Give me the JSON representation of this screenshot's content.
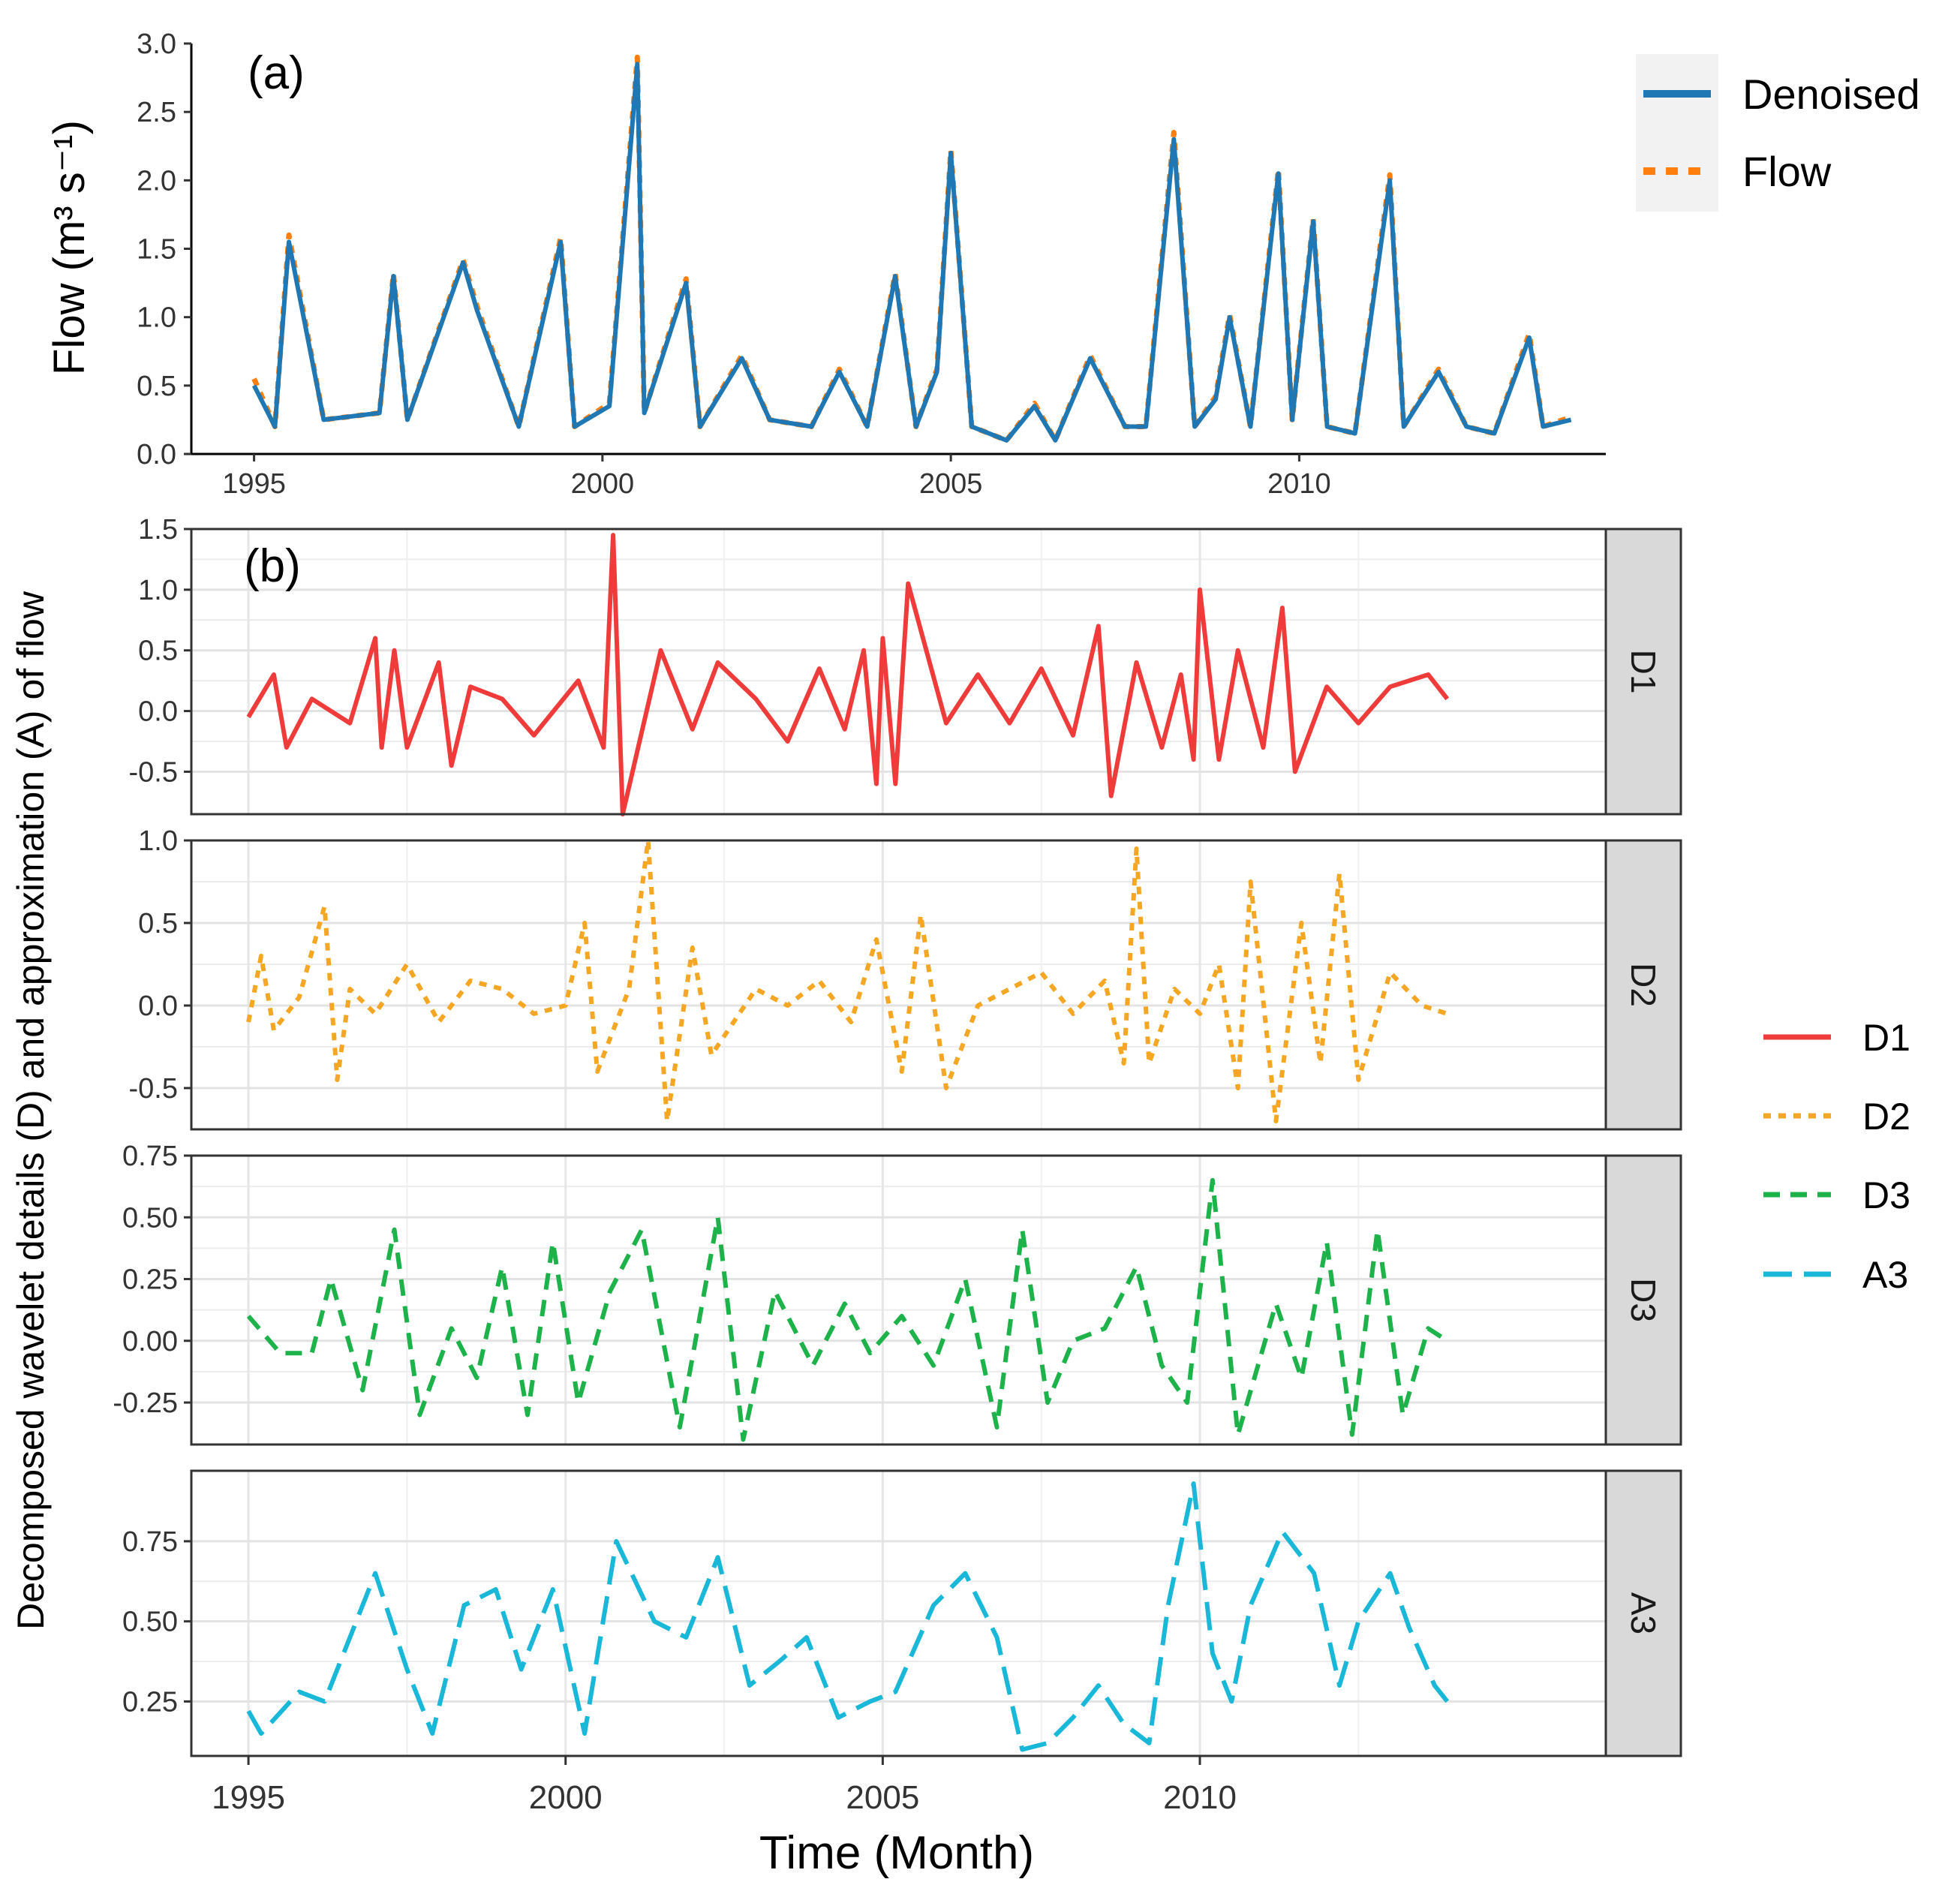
{
  "figure": {
    "panel_a_label": "(a)",
    "panel_b_label": "(b)",
    "xlabel": "Time (Month)",
    "ylabel_b": "Decomposed wavelet details (D) and approximation (A) of flow"
  },
  "legends": {
    "top": [
      {
        "label": "Denoised",
        "color": "#1f77b4",
        "dash": "solid"
      },
      {
        "label": "Flow",
        "color": "#ff7f0e",
        "dash": "dotted"
      }
    ],
    "bottom": [
      {
        "label": "D1",
        "color": "#f03b3b",
        "dash": "solid"
      },
      {
        "label": "D2",
        "color": "#f5a623",
        "dash": "dotted"
      },
      {
        "label": "D3",
        "color": "#1db34a",
        "dash": "dashed"
      },
      {
        "label": "A3",
        "color": "#1ab8d8",
        "dash": "longdash"
      }
    ]
  },
  "chart_data": [
    {
      "type": "line",
      "panel": "a",
      "title": "",
      "ylabel": "Flow (m³ s⁻¹)",
      "xlabel": "",
      "xlim": [
        1994.1,
        2014.4
      ],
      "ylim": [
        0,
        3.0
      ],
      "x_ticks": [
        1995,
        2000,
        2005,
        2010
      ],
      "y_ticks": [
        "0.0",
        "0.5",
        "1.0",
        "1.5",
        "2.0",
        "2.5",
        "3.0"
      ],
      "grid": false,
      "x": [
        1995.0,
        1995.3,
        1995.5,
        1996.0,
        1996.8,
        1997.0,
        1997.2,
        1998.0,
        1998.2,
        1998.8,
        1999.4,
        1999.6,
        2000.1,
        2000.5,
        2000.6,
        2001.2,
        2001.4,
        2002.0,
        2002.4,
        2003.0,
        2003.4,
        2003.8,
        2004.2,
        2004.5,
        2004.8,
        2005.0,
        2005.3,
        2005.8,
        2006.2,
        2006.5,
        2007.0,
        2007.5,
        2007.8,
        2008.2,
        2008.5,
        2008.8,
        2009.0,
        2009.3,
        2009.7,
        2009.9,
        2010.2,
        2010.4,
        2010.8,
        2011.3,
        2011.5,
        2012.0,
        2012.4,
        2012.8,
        2013.3,
        2013.5,
        2013.9
      ],
      "series": [
        {
          "name": "Denoised",
          "values": [
            0.5,
            0.2,
            1.55,
            0.25,
            0.3,
            1.3,
            0.25,
            1.4,
            1.05,
            0.2,
            1.55,
            0.2,
            0.35,
            2.85,
            0.3,
            1.25,
            0.2,
            0.7,
            0.25,
            0.2,
            0.6,
            0.2,
            1.3,
            0.2,
            0.6,
            2.2,
            0.2,
            0.1,
            0.35,
            0.1,
            0.7,
            0.2,
            0.2,
            2.3,
            0.2,
            0.4,
            1.0,
            0.2,
            2.05,
            0.25,
            1.7,
            0.2,
            0.15,
            2.0,
            0.2,
            0.6,
            0.2,
            0.15,
            0.85,
            0.2,
            0.25
          ]
        },
        {
          "name": "Flow",
          "values": [
            0.55,
            0.2,
            1.6,
            0.25,
            0.3,
            1.32,
            0.25,
            1.42,
            1.08,
            0.2,
            1.58,
            0.2,
            0.37,
            2.9,
            0.3,
            1.28,
            0.2,
            0.72,
            0.25,
            0.2,
            0.62,
            0.2,
            1.32,
            0.2,
            0.62,
            2.22,
            0.2,
            0.1,
            0.37,
            0.1,
            0.72,
            0.2,
            0.2,
            2.35,
            0.2,
            0.42,
            1.02,
            0.2,
            2.08,
            0.25,
            1.72,
            0.2,
            0.15,
            2.04,
            0.2,
            0.62,
            0.2,
            0.15,
            0.88,
            0.2,
            0.27
          ]
        }
      ]
    },
    {
      "type": "line",
      "panel": "D1",
      "title": "",
      "ylabel": "",
      "xlabel": "",
      "xlim": [
        1994.1,
        2016.4
      ],
      "ylim": [
        -0.85,
        1.5
      ],
      "x_ticks": [],
      "y_ticks": [
        "-0.5",
        "0.0",
        "0.5",
        "1.0",
        "1.5"
      ],
      "grid": true,
      "strip_label": "D1",
      "x": [
        1995.0,
        1995.4,
        1995.6,
        1996.0,
        1996.6,
        1997.0,
        1997.1,
        1997.3,
        1997.5,
        1998.0,
        1998.2,
        1998.5,
        1999.0,
        1999.5,
        2000.2,
        2000.6,
        2000.75,
        2000.9,
        2001.5,
        2002.0,
        2002.4,
        2003.0,
        2003.5,
        2004.0,
        2004.4,
        2004.7,
        2004.9,
        2005.0,
        2005.2,
        2005.4,
        2006.0,
        2006.5,
        2007.0,
        2007.5,
        2008.0,
        2008.4,
        2008.6,
        2009.0,
        2009.4,
        2009.7,
        2009.9,
        2010.0,
        2010.3,
        2010.6,
        2011.0,
        2011.3,
        2011.5,
        2012.0,
        2012.5,
        2013.0,
        2013.6,
        2013.9
      ],
      "series": [
        {
          "name": "D1",
          "values": [
            -0.05,
            0.3,
            -0.3,
            0.1,
            -0.1,
            0.6,
            -0.3,
            0.5,
            -0.3,
            0.4,
            -0.45,
            0.2,
            0.1,
            -0.2,
            0.25,
            -0.3,
            1.45,
            -0.85,
            0.5,
            -0.15,
            0.4,
            0.1,
            -0.25,
            0.35,
            -0.15,
            0.5,
            -0.6,
            0.6,
            -0.6,
            1.05,
            -0.1,
            0.3,
            -0.1,
            0.35,
            -0.2,
            0.7,
            -0.7,
            0.4,
            -0.3,
            0.3,
            -0.4,
            1.0,
            -0.4,
            0.5,
            -0.3,
            0.85,
            -0.5,
            0.2,
            -0.1,
            0.2,
            0.3,
            0.1
          ]
        }
      ]
    },
    {
      "type": "line",
      "panel": "D2",
      "title": "",
      "ylabel": "",
      "xlabel": "",
      "xlim": [
        1994.1,
        2016.4
      ],
      "ylim": [
        -0.75,
        1.0
      ],
      "x_ticks": [],
      "y_ticks": [
        "-0.5",
        "0.0",
        "0.5",
        "1.0"
      ],
      "grid": true,
      "strip_label": "D2",
      "x": [
        1995.0,
        1995.2,
        1995.4,
        1995.8,
        1996.2,
        1996.4,
        1996.6,
        1997.0,
        1997.5,
        1998.0,
        1998.5,
        1999.0,
        1999.5,
        2000.0,
        2000.3,
        2000.5,
        2001.0,
        2001.3,
        2001.6,
        2002.0,
        2002.3,
        2003.0,
        2003.5,
        2004.0,
        2004.5,
        2004.9,
        2005.3,
        2005.6,
        2006.0,
        2006.5,
        2007.0,
        2007.5,
        2008.0,
        2008.5,
        2008.8,
        2009.0,
        2009.2,
        2009.6,
        2010.0,
        2010.3,
        2010.6,
        2010.8,
        2011.2,
        2011.6,
        2011.9,
        2012.2,
        2012.5,
        2013.0,
        2013.5,
        2013.9
      ],
      "series": [
        {
          "name": "D2",
          "values": [
            -0.1,
            0.3,
            -0.15,
            0.05,
            0.6,
            -0.45,
            0.1,
            -0.05,
            0.25,
            -0.1,
            0.15,
            0.1,
            -0.05,
            0.0,
            0.5,
            -0.4,
            0.1,
            1.0,
            -0.7,
            0.35,
            -0.3,
            0.1,
            0.0,
            0.15,
            -0.1,
            0.4,
            -0.4,
            0.55,
            -0.5,
            0.0,
            0.1,
            0.2,
            -0.05,
            0.15,
            -0.35,
            0.95,
            -0.35,
            0.1,
            -0.05,
            0.25,
            -0.5,
            0.75,
            -0.7,
            0.5,
            -0.35,
            0.8,
            -0.45,
            0.2,
            0.0,
            -0.05
          ]
        }
      ]
    },
    {
      "type": "line",
      "panel": "D3",
      "title": "",
      "ylabel": "",
      "xlabel": "",
      "xlim": [
        1994.1,
        2016.4
      ],
      "ylim": [
        -0.42,
        0.75
      ],
      "x_ticks": [],
      "y_ticks": [
        "-0.25",
        "0.00",
        "0.25",
        "0.50",
        "0.75"
      ],
      "grid": true,
      "strip_label": "D3",
      "x": [
        1995.0,
        1995.5,
        1996.0,
        1996.3,
        1996.8,
        1997.3,
        1997.7,
        1998.2,
        1998.6,
        1999.0,
        1999.4,
        1999.8,
        2000.2,
        2000.7,
        2001.2,
        2001.8,
        2002.4,
        2002.8,
        2003.3,
        2003.9,
        2004.4,
        2004.8,
        2005.3,
        2005.8,
        2006.3,
        2006.8,
        2007.2,
        2007.6,
        2008.0,
        2008.5,
        2009.0,
        2009.4,
        2009.8,
        2010.2,
        2010.6,
        2011.2,
        2011.6,
        2012.0,
        2012.4,
        2012.8,
        2013.2,
        2013.6,
        2013.9
      ],
      "series": [
        {
          "name": "D3",
          "values": [
            0.1,
            -0.05,
            -0.05,
            0.25,
            -0.2,
            0.45,
            -0.3,
            0.05,
            -0.15,
            0.3,
            -0.3,
            0.4,
            -0.25,
            0.2,
            0.45,
            -0.35,
            0.5,
            -0.4,
            0.2,
            -0.1,
            0.15,
            -0.05,
            0.1,
            -0.1,
            0.25,
            -0.35,
            0.45,
            -0.25,
            0.0,
            0.05,
            0.3,
            -0.1,
            -0.25,
            0.65,
            -0.38,
            0.15,
            -0.15,
            0.4,
            -0.38,
            0.45,
            -0.3,
            0.05,
            0.0
          ]
        }
      ]
    },
    {
      "type": "line",
      "panel": "A3",
      "title": "",
      "ylabel": "",
      "xlabel": "",
      "xlim": [
        1994.1,
        2016.4
      ],
      "ylim": [
        0.08,
        0.97
      ],
      "x_ticks": [
        1995,
        2000,
        2005,
        2010
      ],
      "y_ticks": [
        "0.25",
        "0.50",
        "0.75"
      ],
      "grid": true,
      "strip_label": "A3",
      "x": [
        1995.0,
        1995.2,
        1995.8,
        1996.2,
        1996.5,
        1997.0,
        1997.5,
        1997.9,
        1998.4,
        1998.9,
        1999.3,
        1999.8,
        2000.3,
        2000.8,
        2001.4,
        2001.9,
        2002.4,
        2002.9,
        2003.4,
        2003.8,
        2004.3,
        2004.8,
        2005.2,
        2005.8,
        2006.3,
        2006.8,
        2007.2,
        2007.6,
        2008.0,
        2008.4,
        2008.8,
        2009.2,
        2009.5,
        2009.9,
        2010.2,
        2010.5,
        2010.8,
        2011.3,
        2011.8,
        2012.2,
        2012.5,
        2013.0,
        2013.3,
        2013.7,
        2013.9
      ],
      "series": [
        {
          "name": "A3",
          "values": [
            0.22,
            0.15,
            0.28,
            0.25,
            0.4,
            0.65,
            0.35,
            0.15,
            0.55,
            0.6,
            0.35,
            0.6,
            0.15,
            0.75,
            0.5,
            0.45,
            0.7,
            0.3,
            0.38,
            0.45,
            0.2,
            0.25,
            0.28,
            0.55,
            0.65,
            0.45,
            0.1,
            0.12,
            0.2,
            0.3,
            0.18,
            0.12,
            0.55,
            0.93,
            0.4,
            0.25,
            0.55,
            0.78,
            0.65,
            0.3,
            0.5,
            0.65,
            0.48,
            0.3,
            0.25
          ]
        }
      ]
    }
  ]
}
